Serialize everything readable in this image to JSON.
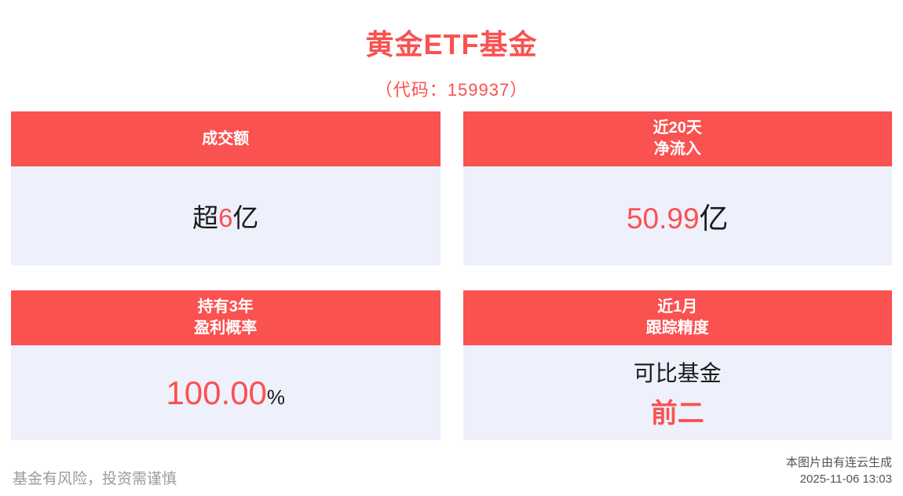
{
  "title": "黄金ETF基金",
  "subtitle": "（代码：159937）",
  "cards": [
    {
      "header": [
        "成交额"
      ],
      "value": {
        "pre": "超",
        "highlight": "6",
        "post": "亿"
      }
    },
    {
      "header": [
        "近20天",
        "净流入"
      ],
      "value": {
        "highlight": "50.99",
        "post": "亿"
      }
    },
    {
      "header": [
        "持有3年",
        "盈利概率"
      ],
      "value": {
        "highlight": "100.00",
        "post": "%"
      }
    },
    {
      "header": [
        "近1月",
        "跟踪精度"
      ],
      "value": {
        "line1": "可比基金",
        "line2": "前二"
      }
    }
  ],
  "footer": {
    "disclaimer": "基金有风险，投资需谨慎",
    "source": "本图片由有连云生成",
    "timestamp": "2025-11-06 13:03"
  },
  "colors": {
    "accent": "#fa5151",
    "card_body_bg": "#eef0fb",
    "disclaimer_text": "#9b9b9b",
    "credit_text": "#555555"
  }
}
